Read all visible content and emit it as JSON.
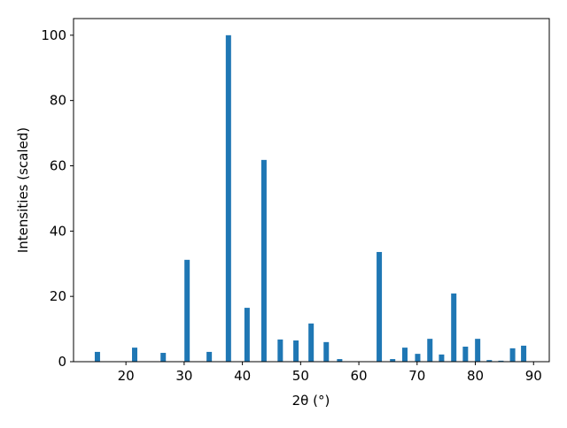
{
  "chart_data": {
    "type": "bar",
    "xlabel": "2θ (°)",
    "ylabel": "Intensities (scaled)",
    "x": [
      15.1,
      21.5,
      26.4,
      30.5,
      34.3,
      37.6,
      40.8,
      43.7,
      46.5,
      49.2,
      51.8,
      54.4,
      56.7,
      63.5,
      65.8,
      67.9,
      70.1,
      72.2,
      74.2,
      76.3,
      78.3,
      80.4,
      82.4,
      84.4,
      86.4,
      88.3
    ],
    "values": [
      3.0,
      4.3,
      2.7,
      31.2,
      3.0,
      100,
      16.5,
      61.8,
      6.8,
      6.5,
      11.7,
      6.0,
      0.8,
      33.6,
      0.8,
      4.3,
      2.4,
      7.0,
      2.2,
      20.9,
      4.6,
      7.0,
      0.5,
      0.3,
      4.1,
      4.9
    ],
    "color": "#1f77b4",
    "xlim": [
      11.0,
      92.7
    ],
    "ylim": [
      0,
      105.1
    ],
    "xticks": [
      20,
      30,
      40,
      50,
      60,
      70,
      80,
      90
    ],
    "yticks": [
      0,
      20,
      40,
      60,
      80,
      100
    ]
  }
}
